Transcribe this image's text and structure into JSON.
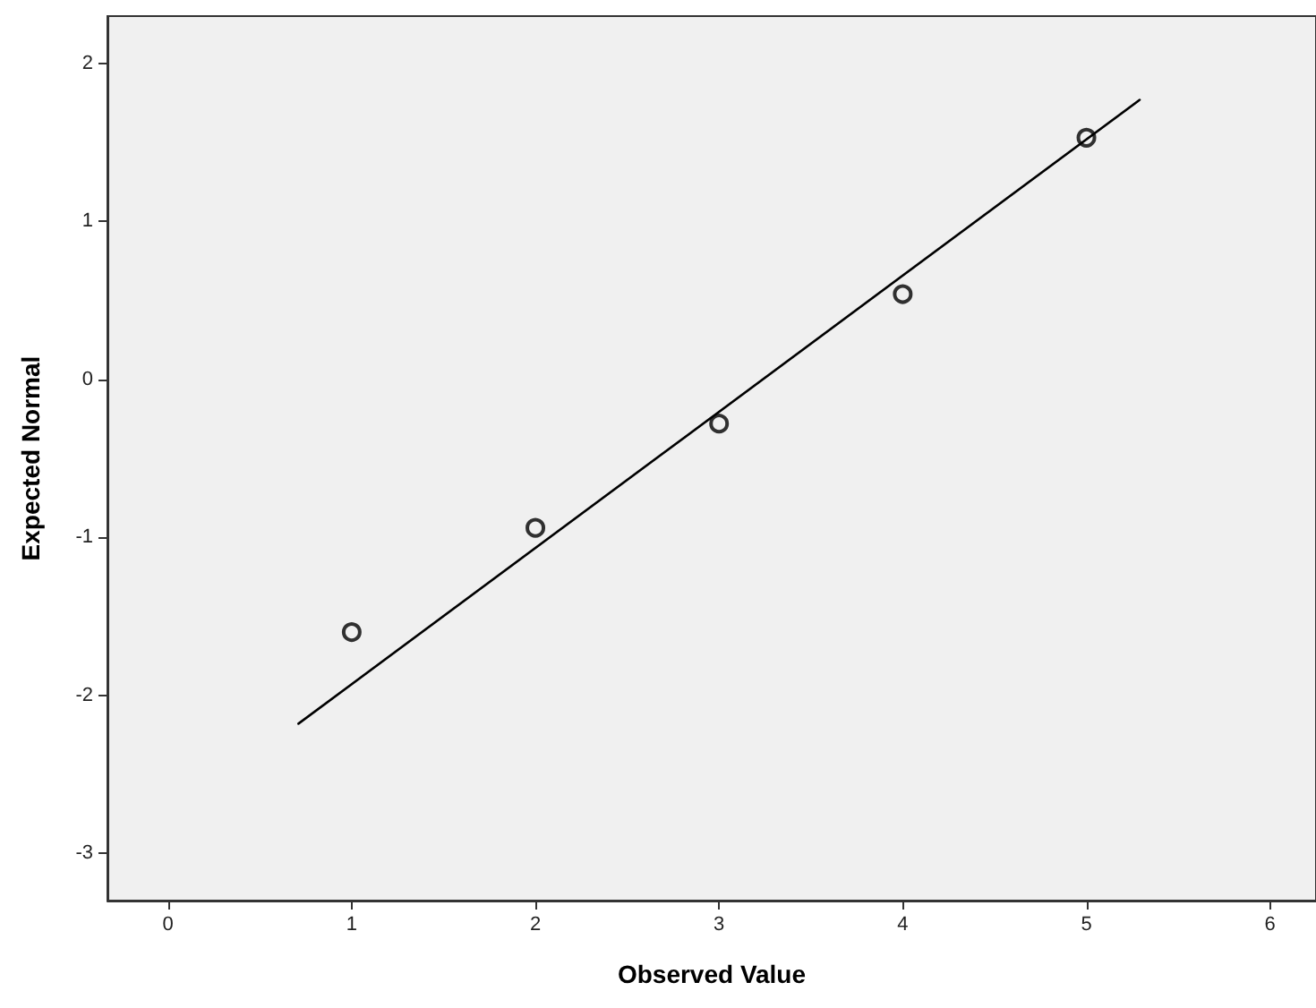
{
  "chart_data": {
    "type": "scatter",
    "xlabel": "Observed Value",
    "ylabel": "Expected Normal",
    "series": [
      {
        "color": "#000000",
        "marker": "circle",
        "x": [
          1,
          2,
          3,
          4,
          5
        ],
        "values": [
          -1.6,
          -0.94,
          -0.28,
          0.54,
          1.53
        ]
      },
      {
        "type": "line",
        "color": "#000000",
        "marker": "none",
        "x": [
          0.71,
          5.29
        ],
        "values": [
          -2.18,
          1.77
        ]
      }
    ],
    "xlim": [
      -0.33,
      6.25
    ],
    "xticks": [
      0,
      1,
      2,
      3,
      4,
      5,
      6
    ],
    "ylim": [
      -3.3,
      2.3
    ],
    "yticks": [
      -3,
      -2,
      -1,
      0,
      1,
      2
    ],
    "grid": false
  }
}
